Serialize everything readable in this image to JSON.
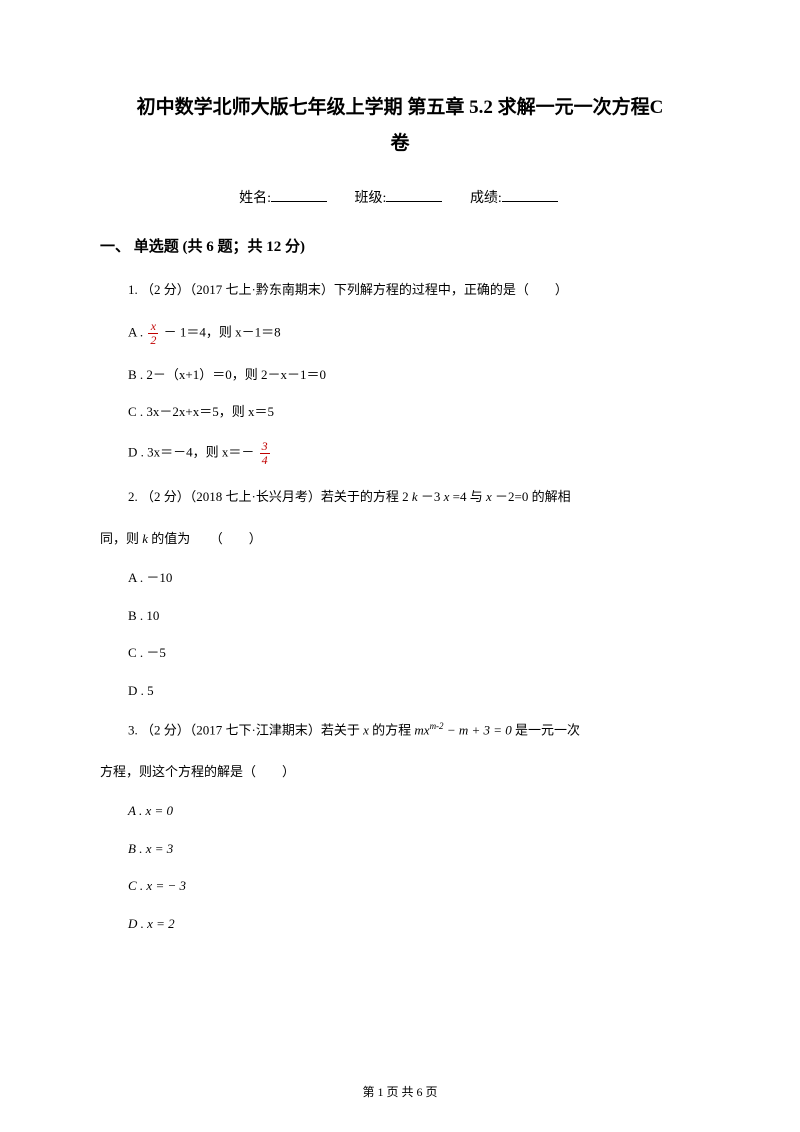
{
  "title_line1": "初中数学北师大版七年级上学期 第五章 5.2 求解一元一次方程C",
  "title_line2": "卷",
  "info": {
    "name": "姓名:",
    "class": "班级:",
    "score": "成绩:"
  },
  "section": "一、 单选题 (共 6 题；共 12 分)",
  "q1": {
    "stem": "1. （2 分）（2017 七上·黔东南期末）下列解方程的过程中，正确的是（　　）",
    "a_pre": "A . ",
    "a_post": " － 1＝4，则 x－1＝8",
    "b": "B . 2－（x+1）＝0，则 2－x－1＝0",
    "c": "C . 3x－2x+x＝5，则 x＝5",
    "d_pre": "D . 3x＝－4，则 x＝－ "
  },
  "q2": {
    "stem": "2. （2 分）（2018 七上·长兴月考）若关于的方程 2 ",
    "stem2": " －3 ",
    "stem3": " =4 与 ",
    "stem4": " －2=0 的解相",
    "cont": "同，则 ",
    "cont2": " 的值为　　（　　）",
    "a": "A . －10",
    "b": "B . 10",
    "c": "C . －5",
    "d": "D . 5"
  },
  "q3": {
    "stem_a": "3. （2 分）（2017 七下·江津期末）若关于 ",
    "stem_b": " 的方程 ",
    "stem_c": " 是一元一次",
    "cont": "方程，则这个方程的解是（　　）",
    "a": "A . x = 0",
    "b": "B . x = 3",
    "c": "C . x = − 3",
    "d": "D . x = 2"
  },
  "footer": "第 1 页 共 6 页"
}
